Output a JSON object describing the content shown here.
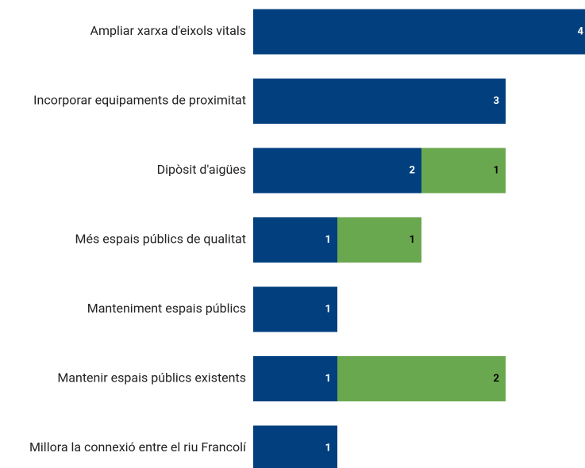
{
  "chart_data": {
    "type": "stacked-barh",
    "categories": [
      "Ampliar xarxa d'eixols vitals",
      "Incorporar equipaments de proximitat",
      "Dipòsit d'aigües",
      "Més espais públics de qualitat",
      "Manteniment espais públics",
      "Mantenir espais públics existents",
      "Millora la connexió entre el riu Francolí"
    ],
    "series": [
      {
        "color": "#023f7f",
        "label_color": "#ffffff",
        "values": [
          4,
          3,
          2,
          1,
          1,
          1,
          1
        ]
      },
      {
        "color": "#6aa84f",
        "label_color": "#000000",
        "values": [
          null,
          null,
          1,
          1,
          null,
          2,
          null
        ]
      }
    ]
  }
}
